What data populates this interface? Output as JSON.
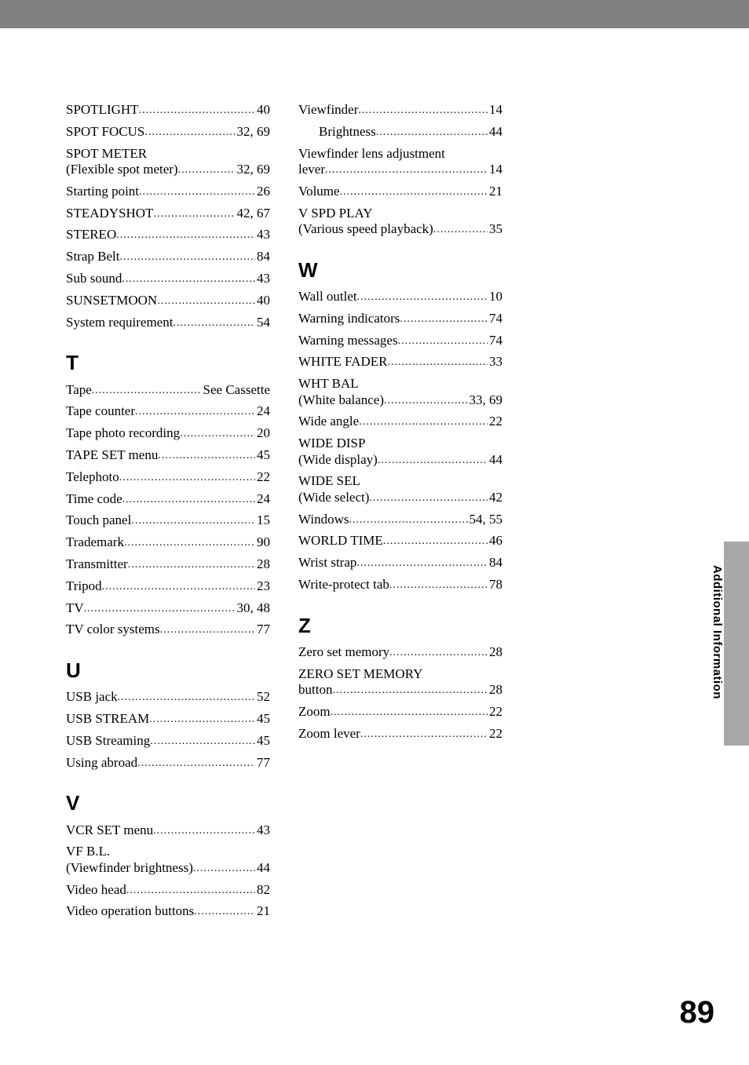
{
  "sideLabel": "Additional Information",
  "pageNumber": "89",
  "col1": [
    {
      "type": "entry",
      "label": "SPOTLIGHT",
      "page": "40"
    },
    {
      "type": "entry",
      "label": "SPOT FOCUS",
      "page": "32, 69"
    },
    {
      "type": "multi",
      "line1": "SPOT METER",
      "label2": "(Flexible spot meter)",
      "page": "32, 69"
    },
    {
      "type": "entry",
      "label": "Starting point",
      "page": "26"
    },
    {
      "type": "entry",
      "label": "STEADYSHOT",
      "page": "42, 67"
    },
    {
      "type": "entry",
      "label": "STEREO",
      "page": "43"
    },
    {
      "type": "entry",
      "label": "Strap Belt",
      "page": "84"
    },
    {
      "type": "entry",
      "label": "Sub sound",
      "page": "43"
    },
    {
      "type": "entry",
      "label": "SUNSETMOON",
      "page": "40"
    },
    {
      "type": "entry",
      "label": "System requirement",
      "page": "54"
    },
    {
      "type": "letter",
      "text": "T"
    },
    {
      "type": "entry",
      "label": "Tape",
      "page": "See Cassette"
    },
    {
      "type": "entry",
      "label": "Tape counter",
      "page": "24"
    },
    {
      "type": "entry",
      "label": "Tape photo recording",
      "page": "20"
    },
    {
      "type": "entry",
      "label": "TAPE SET menu",
      "page": "45"
    },
    {
      "type": "entry",
      "label": "Telephoto",
      "page": "22"
    },
    {
      "type": "entry",
      "label": "Time code",
      "page": "24"
    },
    {
      "type": "entry",
      "label": "Touch panel",
      "page": "15"
    },
    {
      "type": "entry",
      "label": "Trademark",
      "page": "90"
    },
    {
      "type": "entry",
      "label": "Transmitter",
      "page": "28"
    },
    {
      "type": "entry",
      "label": "Tripod",
      "page": "23"
    },
    {
      "type": "entry",
      "label": "TV",
      "page": "30, 48"
    },
    {
      "type": "entry",
      "label": "TV color systems",
      "page": "77"
    },
    {
      "type": "letter",
      "text": "U"
    },
    {
      "type": "entry",
      "label": "USB jack",
      "page": "52"
    },
    {
      "type": "entry",
      "label": "USB STREAM",
      "page": "45"
    },
    {
      "type": "entry",
      "label": "USB Streaming",
      "page": "45"
    },
    {
      "type": "entry",
      "label": "Using abroad",
      "page": "77"
    },
    {
      "type": "letter",
      "text": "V"
    },
    {
      "type": "entry",
      "label": "VCR SET menu",
      "page": "43"
    },
    {
      "type": "multi",
      "line1": "VF B.L.",
      "label2": "(Viewfinder brightness)",
      "page": "44"
    },
    {
      "type": "entry",
      "label": "Video head",
      "page": "82"
    },
    {
      "type": "entry",
      "label": "Video operation buttons",
      "page": "21"
    }
  ],
  "col2": [
    {
      "type": "entry",
      "label": "Viewfinder",
      "page": "14"
    },
    {
      "type": "entry",
      "label": "Brightness",
      "page": "44",
      "sub": true
    },
    {
      "type": "multi",
      "line1": "Viewfinder lens adjustment",
      "label2": "lever",
      "page": "14"
    },
    {
      "type": "entry",
      "label": "Volume",
      "page": "21"
    },
    {
      "type": "multi",
      "line1": "V SPD PLAY",
      "label2": "(Various speed playback)",
      "page": "35"
    },
    {
      "type": "letter",
      "text": "W"
    },
    {
      "type": "entry",
      "label": "Wall outlet",
      "page": "10"
    },
    {
      "type": "entry",
      "label": "Warning indicators",
      "page": "74"
    },
    {
      "type": "entry",
      "label": "Warning messages",
      "page": "74"
    },
    {
      "type": "entry",
      "label": "WHITE FADER",
      "page": "33"
    },
    {
      "type": "multi",
      "line1": "WHT BAL",
      "label2": "(White balance)",
      "page": "33, 69"
    },
    {
      "type": "entry",
      "label": "Wide angle",
      "page": "22"
    },
    {
      "type": "multi",
      "line1": "WIDE DISP",
      "label2": "(Wide display)",
      "page": "44"
    },
    {
      "type": "multi",
      "line1": "WIDE SEL",
      "label2": "(Wide select)",
      "page": "42"
    },
    {
      "type": "entry",
      "label": "Windows",
      "page": "54, 55"
    },
    {
      "type": "entry",
      "label": "WORLD TIME",
      "page": "46"
    },
    {
      "type": "entry",
      "label": "Wrist strap",
      "page": "84"
    },
    {
      "type": "entry",
      "label": "Write-protect tab",
      "page": "78"
    },
    {
      "type": "letter",
      "text": "Z"
    },
    {
      "type": "entry",
      "label": "Zero set memory",
      "page": "28"
    },
    {
      "type": "multi",
      "line1": "ZERO SET MEMORY",
      "label2": "button",
      "page": "28"
    },
    {
      "type": "entry",
      "label": "Zoom",
      "page": "22"
    },
    {
      "type": "entry",
      "label": "Zoom lever",
      "page": "22"
    }
  ]
}
